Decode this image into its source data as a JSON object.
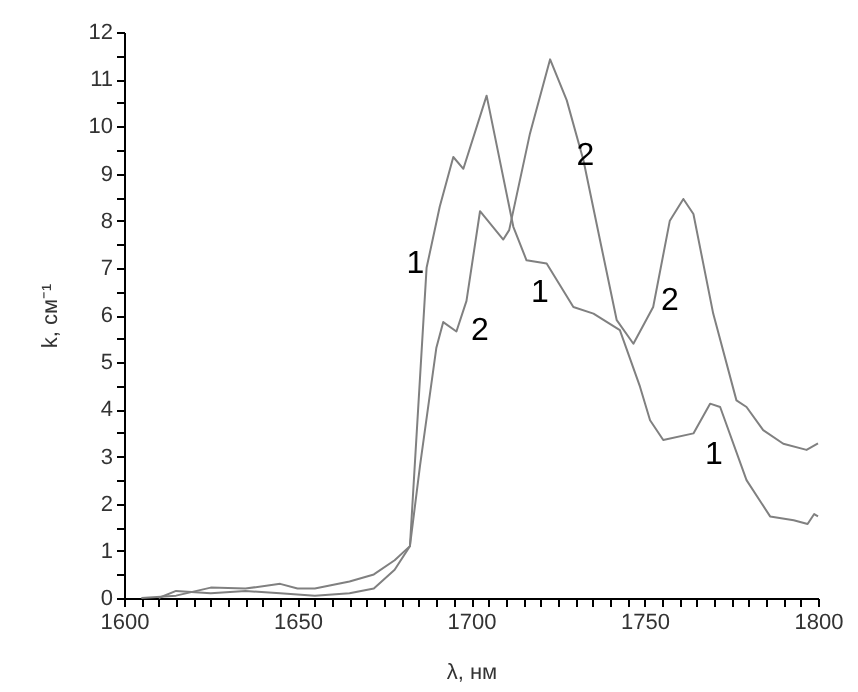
{
  "chart_data": {
    "type": "line",
    "xlabel": "λ, нм",
    "ylabel": "k, см⁻¹",
    "xlim": [
      1600,
      1800
    ],
    "ylim": [
      0,
      12
    ],
    "xticks": [
      1600,
      {
        "value": 1605,
        "label": null
      },
      {
        "value": 1610,
        "label": null
      },
      {
        "value": 1615,
        "label": null
      },
      {
        "value": 1620,
        "label": null
      },
      {
        "value": 1625,
        "label": null
      },
      {
        "value": 1630,
        "label": null
      },
      {
        "value": 1635,
        "label": null
      },
      {
        "value": 1640,
        "label": null
      },
      {
        "value": 1645,
        "label": null
      },
      1650,
      {
        "value": 1655,
        "label": null
      },
      {
        "value": 1660,
        "label": null
      },
      {
        "value": 1665,
        "label": null
      },
      {
        "value": 1670,
        "label": null
      },
      {
        "value": 1675,
        "label": null
      },
      {
        "value": 1680,
        "label": null
      },
      {
        "value": 1685,
        "label": null
      },
      {
        "value": 1690,
        "label": null
      },
      {
        "value": 1695,
        "label": null
      },
      1700,
      {
        "value": 1705,
        "label": null
      },
      {
        "value": 1710,
        "label": null
      },
      {
        "value": 1715,
        "label": null
      },
      {
        "value": 1720,
        "label": null
      },
      {
        "value": 1725,
        "label": null
      },
      {
        "value": 1730,
        "label": null
      },
      {
        "value": 1735,
        "label": null
      },
      {
        "value": 1740,
        "label": null
      },
      {
        "value": 1745,
        "label": null
      },
      1750,
      {
        "value": 1755,
        "label": null
      },
      {
        "value": 1760,
        "label": null
      },
      {
        "value": 1765,
        "label": null
      },
      {
        "value": 1770,
        "label": null
      },
      {
        "value": 1775,
        "label": null
      },
      {
        "value": 1780,
        "label": null
      },
      {
        "value": 1785,
        "label": null
      },
      {
        "value": 1790,
        "label": null
      },
      {
        "value": 1795,
        "label": null
      },
      1800
    ],
    "yticks": [
      0,
      {
        "value": 0.5,
        "label": null
      },
      1,
      {
        "value": 1.5,
        "label": null
      },
      2,
      {
        "value": 2.5,
        "label": null
      },
      3,
      {
        "value": 3.5,
        "label": null
      },
      4,
      {
        "value": 4.5,
        "label": null
      },
      5,
      {
        "value": 5.5,
        "label": null
      },
      6,
      {
        "value": 6.5,
        "label": null
      },
      7,
      {
        "value": 7.5,
        "label": null
      },
      8,
      {
        "value": 8.5,
        "label": null
      },
      9,
      {
        "value": 9.5,
        "label": null
      },
      10,
      {
        "value": 10.5,
        "label": null
      },
      11,
      {
        "value": 11.5,
        "label": null
      },
      12
    ],
    "grid": false,
    "marker": "none",
    "line_style": "solid",
    "series": [
      {
        "color": "#808080",
        "x": [
          1610,
          1615,
          1625,
          1635,
          1645,
          1655,
          1665,
          1672,
          1678,
          1682.4,
          1687.2,
          1691,
          1694.9,
          1697.8,
          1704.5,
          1712.2,
          1716,
          1721.8,
          1729.5,
          1735.3,
          1742.9,
          1748.7,
          1751.6,
          1755.4,
          1764.1,
          1768.9,
          1771.8,
          1779.4,
          1786.2,
          1793,
          1797,
          1798.9,
          1800
        ],
        "values": [
          0.0,
          0.15,
          0.1,
          0.15,
          0.1,
          0.05,
          0.1,
          0.2,
          0.6,
          1.1,
          7.0,
          8.3,
          9.35,
          9.1,
          10.65,
          7.87,
          7.16,
          7.09,
          6.17,
          6.03,
          5.68,
          4.48,
          3.77,
          3.35,
          3.49,
          4.12,
          4.05,
          2.5,
          1.73,
          1.65,
          1.57,
          1.78,
          1.73
        ]
      },
      {
        "color": "#808080",
        "x": [
          1605,
          1615,
          1625,
          1635,
          1645,
          1650,
          1655,
          1665,
          1672,
          1678,
          1682.4,
          1685.3,
          1690,
          1692,
          1695.8,
          1698.7,
          1702.6,
          1709.3,
          1711,
          1717,
          1722.8,
          1727.6,
          1732.4,
          1737.2,
          1742,
          1746.8,
          1752.5,
          1757.3,
          1761.2,
          1764.1,
          1769.8,
          1776.5,
          1779.4,
          1784.2,
          1790,
          1796.7,
          1800
        ],
        "values": [
          0.0,
          0.05,
          0.22,
          0.2,
          0.3,
          0.2,
          0.2,
          0.35,
          0.5,
          0.8,
          1.1,
          2.8,
          5.3,
          5.85,
          5.65,
          6.3,
          8.2,
          7.6,
          7.8,
          9.85,
          11.42,
          10.55,
          9.28,
          7.58,
          5.89,
          5.39,
          6.17,
          8.0,
          8.46,
          8.14,
          6.03,
          4.19,
          4.05,
          3.56,
          3.27,
          3.14,
          3.28
        ]
      }
    ],
    "annotations": [
      {
        "text": "1",
        "x": 1684,
        "y": 7.1
      },
      "2",
      "1",
      {
        "text": "2",
        "x": 1733,
        "y": 9.4
      },
      "2",
      "1"
    ]
  }
}
